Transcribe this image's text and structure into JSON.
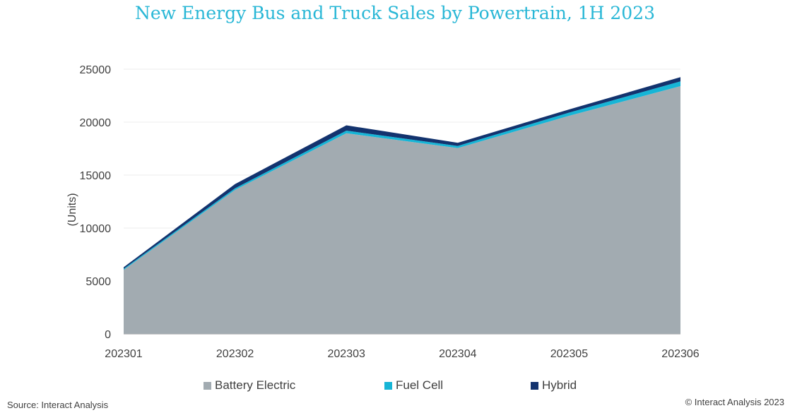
{
  "chart_data": {
    "type": "area",
    "stacked": true,
    "title": "New Energy Bus and Truck Sales by Powertrain, 1H 2023",
    "xlabel": "",
    "ylabel": "(Units)",
    "categories": [
      "202301",
      "202302",
      "202303",
      "202304",
      "202305",
      "202306"
    ],
    "ylim": [
      0,
      25000
    ],
    "yticks": [
      "0",
      "5000",
      "10000",
      "15000",
      "20000",
      "25000"
    ],
    "grid": true,
    "legend_position": "bottom",
    "series": [
      {
        "name": "Battery Electric",
        "color": "#a2abb1",
        "values": [
          6050,
          13600,
          18950,
          17550,
          20600,
          23400
        ]
      },
      {
        "name": "Fuel Cell",
        "color": "#16b5d6",
        "values": [
          100,
          150,
          250,
          200,
          300,
          450
        ]
      },
      {
        "name": "Hybrid",
        "color": "#13336e",
        "values": [
          150,
          400,
          500,
          300,
          300,
          400
        ]
      }
    ]
  },
  "footer": {
    "source": "Source: Interact Analysis",
    "copyright": "© Interact Analysis 2023"
  }
}
